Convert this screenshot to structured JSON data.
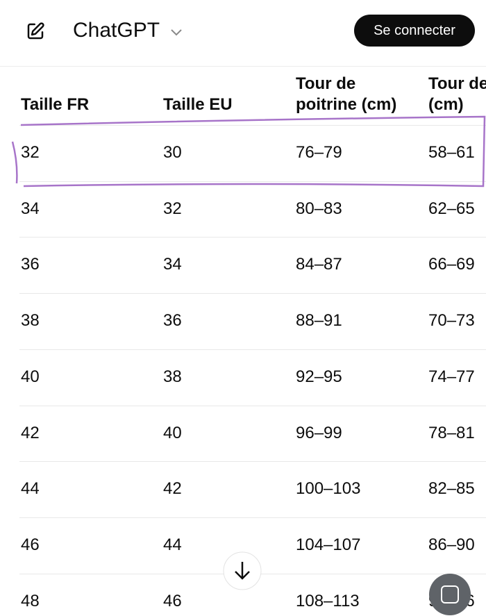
{
  "header": {
    "title": "ChatGPT",
    "login_button": "Se connecter"
  },
  "table": {
    "columns": [
      "Taille FR",
      "Taille EU",
      "Tour de poitrine (cm)",
      "Tour de taille (cm)"
    ],
    "rows": [
      [
        "32",
        "30",
        "76–79",
        "58–61"
      ],
      [
        "34",
        "32",
        "80–83",
        "62–65"
      ],
      [
        "36",
        "34",
        "84–87",
        "66–69"
      ],
      [
        "38",
        "36",
        "88–91",
        "70–73"
      ],
      [
        "40",
        "38",
        "92–95",
        "74–77"
      ],
      [
        "42",
        "40",
        "96–99",
        "78–81"
      ],
      [
        "44",
        "42",
        "100–103",
        "82–85"
      ],
      [
        "46",
        "44",
        "104–107",
        "86–90"
      ],
      [
        "48",
        "46",
        "108–113",
        "91–96"
      ]
    ]
  }
}
